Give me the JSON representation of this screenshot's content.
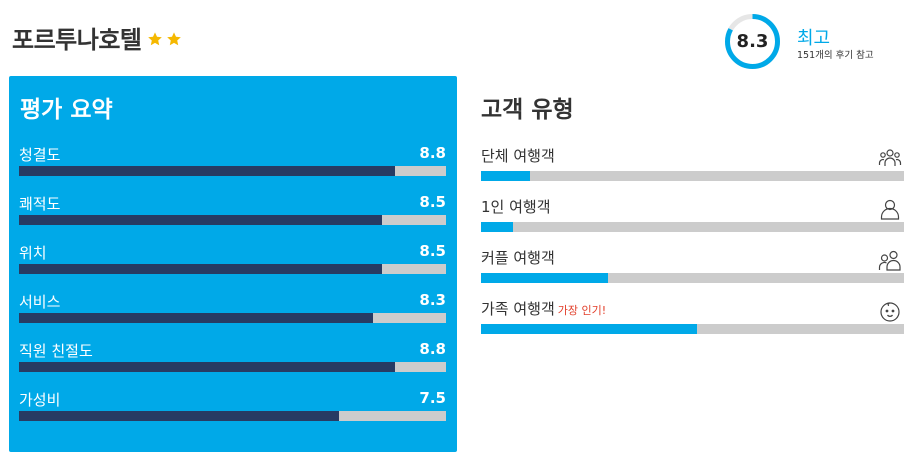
{
  "hotel": {
    "name": "포르투나호텔",
    "star_count": 2,
    "star_color": "#f5b800"
  },
  "score": {
    "value": "8.3",
    "fraction": 0.83,
    "word": "최고",
    "reviews": "151개의 후기 참고",
    "ring_color": "#00a9e8"
  },
  "summary": {
    "title": "평가 요약",
    "max": 10,
    "panel_color": "#00a9e8",
    "bar_color": "#273b63",
    "items": [
      {
        "label": "청결도",
        "value": "8.8"
      },
      {
        "label": "쾌적도",
        "value": "8.5"
      },
      {
        "label": "위치",
        "value": "8.5"
      },
      {
        "label": "서비스",
        "value": "8.3"
      },
      {
        "label": "직원 친절도",
        "value": "8.8"
      },
      {
        "label": "가성비",
        "value": "7.5"
      }
    ]
  },
  "traveler_types": {
    "title": "고객 유형",
    "bar_color": "#00a9e8",
    "items": [
      {
        "label": "단체 여행객",
        "fraction": 0.115,
        "icon": "group-icon",
        "badge": ""
      },
      {
        "label": "1인 여행객",
        "fraction": 0.075,
        "icon": "person-icon",
        "badge": ""
      },
      {
        "label": "커플 여행객",
        "fraction": 0.3,
        "icon": "couple-icon",
        "badge": ""
      },
      {
        "label": "가족 여행객",
        "fraction": 0.51,
        "icon": "baby-icon",
        "badge": "가장 인기!"
      }
    ]
  }
}
